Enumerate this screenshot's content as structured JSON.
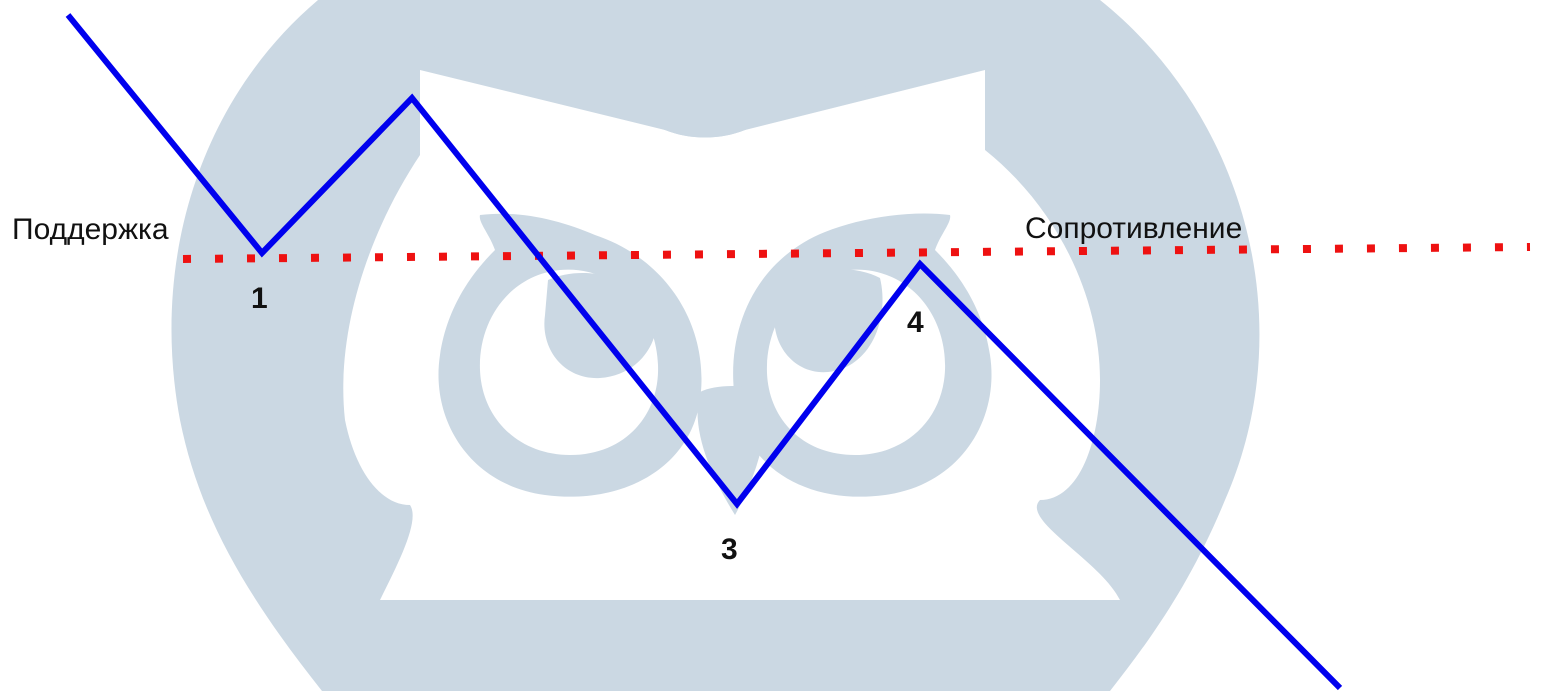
{
  "diagram": {
    "support_label": "Поддержка",
    "resistance_label": "Сопротивление",
    "points": [
      {
        "id": "p1",
        "label": "1"
      },
      {
        "id": "p3",
        "label": "3"
      },
      {
        "id": "p4",
        "label": "4"
      }
    ],
    "colors": {
      "price_line": "#0000ee",
      "level_line": "#ee1111",
      "watermark": "#cbd8e3",
      "text": "#111111",
      "background": "#ffffff"
    },
    "watermark_icon": "owl-logo-icon"
  }
}
